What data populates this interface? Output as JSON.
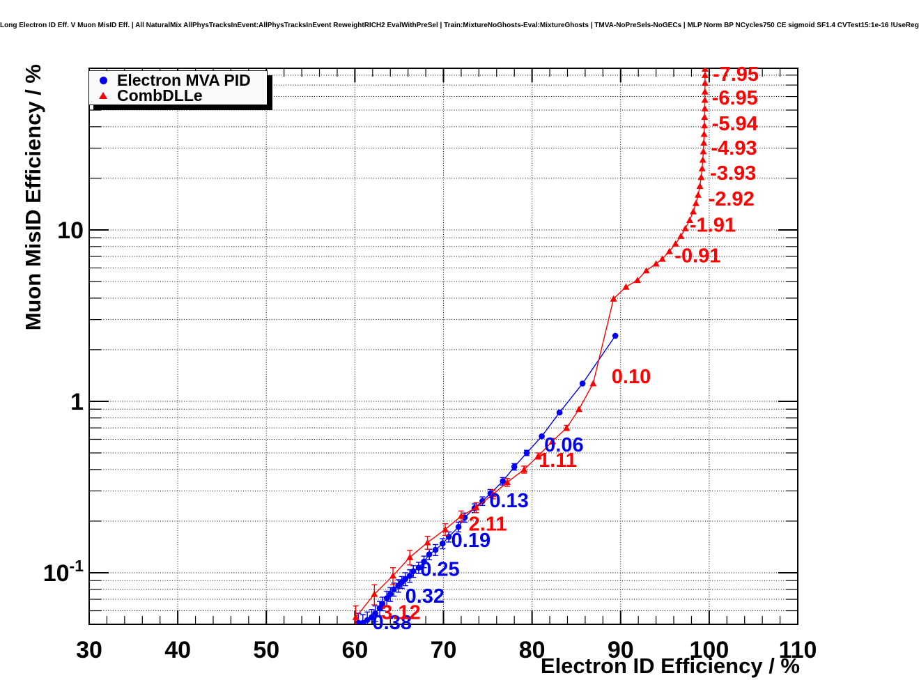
{
  "chart_data": {
    "type": "line",
    "title": "Long Electron ID Eff. V Muon MisID Eff. | All NaturalMix AllPhysTracksInEvent:AllPhysTracksInEvent ReweightRICH2 EvalWithPreSel | Train:MixtureNoGhosts-Eval:MixtureGhosts | TMVA-NoPreSels-NoGECs | MLP Norm BP NCycles750 CE sigmoid SF1.4 CVTest15:1e-16 !UseReg",
    "xlabel": "Electron ID Efficiency / %",
    "ylabel": "Muon MisID Efficiency / %",
    "x_axis": {
      "min": 30,
      "max": 110,
      "major_tick_step": 10,
      "minor_tick_step": 2,
      "tick_labels": [
        "30",
        "40",
        "50",
        "60",
        "70",
        "80",
        "90",
        "100",
        "110"
      ]
    },
    "y_axis": {
      "scale": "log",
      "min": 0.05,
      "max": 87.7,
      "tick_labels": [
        {
          "value": 10,
          "label": "10"
        },
        {
          "value": 1,
          "label": "1"
        },
        {
          "value": 0.1,
          "label": "10^-1"
        }
      ]
    },
    "grid": {
      "horizontal": "all log minor and major positions, dotted",
      "vertical": "major ticks every 10, dotted"
    },
    "legend": {
      "position": "top-left"
    },
    "series": [
      {
        "id": "electron-mva-pid",
        "name": "Electron MVA PID",
        "color": "#0000ee",
        "marker": "circle",
        "points": [
          [
            60.4,
            0.051,
            0.007
          ],
          [
            60.9,
            0.051,
            0.006
          ],
          [
            61.4,
            0.053,
            0.006
          ],
          [
            61.9,
            0.055,
            0.006
          ],
          [
            62.3,
            0.058,
            0.006
          ],
          [
            62.8,
            0.062,
            0.006
          ],
          [
            63.1,
            0.066,
            0.006
          ],
          [
            63.6,
            0.071,
            0.007
          ],
          [
            64.0,
            0.075,
            0.007
          ],
          [
            64.4,
            0.08,
            0.007
          ],
          [
            64.9,
            0.084,
            0.007
          ],
          [
            65.3,
            0.088,
            0.007
          ],
          [
            65.7,
            0.092,
            0.008
          ],
          [
            66.2,
            0.096,
            0.008
          ],
          [
            66.6,
            0.102,
            0.008
          ],
          [
            67.2,
            0.107,
            0.008
          ],
          [
            67.8,
            0.116,
            0.009
          ],
          [
            68.4,
            0.128,
            0.009
          ],
          [
            69.1,
            0.136,
            0.01
          ],
          [
            69.9,
            0.148,
            0.01
          ],
          [
            70.6,
            0.162,
            0.011
          ],
          [
            71.7,
            0.185,
            0.012
          ],
          [
            72.4,
            0.21,
            0.013
          ],
          [
            73.5,
            0.238,
            0.014
          ],
          [
            74.4,
            0.262,
            0.015
          ],
          [
            75.3,
            0.29,
            0.016
          ],
          [
            76.7,
            0.342,
            0.017
          ],
          [
            78.0,
            0.415,
            0.018
          ],
          [
            79.4,
            0.5,
            0.018
          ],
          [
            81.1,
            0.625,
            0.02
          ],
          [
            83.1,
            0.86,
            0.022
          ],
          [
            85.7,
            1.27,
            0.025
          ],
          [
            89.4,
            2.41,
            0.03
          ]
        ],
        "annotations": [
          {
            "label": "0.38",
            "x": 64.2,
            "y": 0.0515
          },
          {
            "label": "0.32",
            "x": 67.9,
            "y": 0.0734
          },
          {
            "label": "0.25",
            "x": 69.6,
            "y": 0.105
          },
          {
            "label": "0.19",
            "x": 73.1,
            "y": 0.155
          },
          {
            "label": "0.13",
            "x": 77.4,
            "y": 0.265
          },
          {
            "label": "0.06",
            "x": 83.6,
            "y": 0.56
          }
        ]
      },
      {
        "id": "combdlle",
        "name": "CombDLLe",
        "color": "#ff0000",
        "marker": "triangle",
        "points": [
          [
            60.1,
            0.055,
            0.009
          ],
          [
            62.2,
            0.075,
            0.01
          ],
          [
            64.3,
            0.096,
            0.011
          ],
          [
            66.2,
            0.123,
            0.012
          ],
          [
            68.2,
            0.15,
            0.013
          ],
          [
            70.2,
            0.179,
            0.014
          ],
          [
            72.0,
            0.214,
            0.015
          ],
          [
            73.7,
            0.24,
            0.016
          ],
          [
            75.6,
            0.287,
            0.017
          ],
          [
            77.2,
            0.337,
            0.018
          ],
          [
            79.1,
            0.4,
            0.019
          ],
          [
            80.7,
            0.48,
            0.02
          ],
          [
            82.3,
            0.585,
            0.022
          ],
          [
            83.9,
            0.7,
            0.024
          ],
          [
            85.3,
            0.9,
            0.026
          ],
          [
            86.9,
            1.27,
            0.03
          ],
          [
            89.2,
            3.96,
            0.06
          ],
          [
            90.6,
            4.65,
            0.07
          ],
          [
            91.9,
            5.09,
            0.07
          ],
          [
            92.9,
            5.79,
            0.08
          ],
          [
            94.0,
            6.35,
            0.08
          ],
          [
            94.7,
            6.77,
            0.08
          ],
          [
            95.5,
            7.5,
            0.09
          ],
          [
            96.2,
            8.3,
            0.09
          ],
          [
            96.8,
            9.2,
            0.1
          ],
          [
            97.3,
            10.2,
            0.1
          ],
          [
            97.8,
            11.4,
            0.11
          ],
          [
            98.2,
            12.8,
            0.11
          ],
          [
            98.5,
            14.3,
            0.12
          ],
          [
            98.75,
            16.0,
            0.12
          ],
          [
            98.95,
            18.0,
            0.13
          ],
          [
            99.1,
            20.3,
            0.13
          ],
          [
            99.2,
            22.8,
            0.14
          ],
          [
            99.28,
            25.6,
            0.14
          ],
          [
            99.34,
            28.7,
            0.15
          ],
          [
            99.39,
            32.2,
            0.15
          ],
          [
            99.43,
            36.2,
            0.16
          ],
          [
            99.46,
            40.6,
            0.16
          ],
          [
            99.48,
            45.5,
            0.17
          ],
          [
            99.5,
            51.1,
            0.17
          ],
          [
            99.51,
            57.3,
            0.18
          ],
          [
            99.52,
            64.0,
            0.18
          ],
          [
            99.53,
            72.0,
            0.19
          ],
          [
            99.53,
            80.0,
            0.2
          ],
          [
            99.53,
            87.0,
            0.2
          ]
        ],
        "annotations": [
          {
            "label": "3.12",
            "x": 65.2,
            "y": 0.059
          },
          {
            "label": "2.11",
            "x": 75.0,
            "y": 0.193
          },
          {
            "label": "1.11",
            "x": 82.9,
            "y": 0.456
          },
          {
            "label": "0.10",
            "x": 91.2,
            "y": 1.4
          },
          {
            "label": "-0.91",
            "x": 98.7,
            "y": 7.1
          },
          {
            "label": "-1.91",
            "x": 100.4,
            "y": 10.7
          },
          {
            "label": "-2.92",
            "x": 102.5,
            "y": 15.2
          },
          {
            "label": "-3.93",
            "x": 102.7,
            "y": 21.5
          },
          {
            "label": "-4.93",
            "x": 102.8,
            "y": 30.2
          },
          {
            "label": "-5.94",
            "x": 102.9,
            "y": 41.9
          },
          {
            "label": "-6.95",
            "x": 102.9,
            "y": 59.2
          },
          {
            "label": "-7.95",
            "x": 103.0,
            "y": 81.4
          }
        ]
      }
    ]
  },
  "colors": {
    "blue_series": "#0000ee",
    "red_series": "#ff0000",
    "frame": "#000000",
    "grid": "#000000",
    "legend_background": "#fafafa",
    "legend_shadow": "#000000",
    "page_background": "#ffffff"
  }
}
